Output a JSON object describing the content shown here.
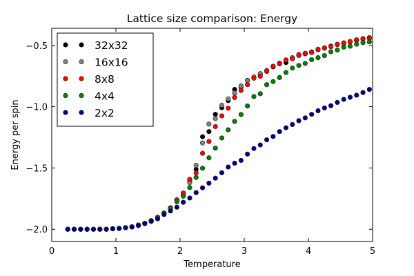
{
  "chart_data": {
    "type": "scatter",
    "title": "Lattice size comparison: Energy",
    "xlabel": "Temperature",
    "ylabel": "Energy per spin",
    "xlim": [
      0,
      5
    ],
    "ylim": [
      -2.1,
      -0.36
    ],
    "xticks": [
      0,
      1,
      2,
      3,
      4,
      5
    ],
    "xtick_labels": [
      "0",
      "1",
      "2",
      "3",
      "4",
      "5"
    ],
    "yticks": [
      -2.0,
      -1.5,
      -1.0,
      -0.5
    ],
    "ytick_labels": [
      "−2.0",
      "−1.5",
      "−1.0",
      "−0.5"
    ],
    "grid": false,
    "legend_position": "top-left",
    "x": [
      0.25,
      0.35,
      0.45,
      0.55,
      0.65,
      0.75,
      0.85,
      0.95,
      1.05,
      1.15,
      1.25,
      1.35,
      1.45,
      1.55,
      1.65,
      1.75,
      1.85,
      1.95,
      2.05,
      2.15,
      2.25,
      2.35,
      2.45,
      2.55,
      2.65,
      2.75,
      2.85,
      2.95,
      3.05,
      3.15,
      3.25,
      3.35,
      3.45,
      3.55,
      3.65,
      3.75,
      3.85,
      3.95,
      4.05,
      4.15,
      4.25,
      4.35,
      4.45,
      4.55,
      4.65,
      4.75,
      4.85,
      4.95
    ],
    "series": [
      {
        "name": "32x32",
        "color": "#000000",
        "values": [
          -2.0,
          -2.0,
          -2.0,
          -2.0,
          -2.0,
          -2.0,
          -2.0,
          -1.996,
          -1.993,
          -1.987,
          -1.98,
          -1.966,
          -1.951,
          -1.93,
          -1.903,
          -1.868,
          -1.826,
          -1.76,
          -1.705,
          -1.6,
          -1.512,
          -1.245,
          -1.203,
          -1.062,
          -1.008,
          -0.95,
          -0.859,
          -0.84,
          -0.785,
          -0.76,
          -0.735,
          -0.712,
          -0.675,
          -0.65,
          -0.64,
          -0.605,
          -0.58,
          -0.568,
          -0.556,
          -0.535,
          -0.522,
          -0.51,
          -0.492,
          -0.482,
          -0.47,
          -0.458,
          -0.446,
          -0.438
        ]
      },
      {
        "name": "16x16",
        "color": "#808080",
        "values": [
          -2.0,
          -2.0,
          -2.0,
          -2.0,
          -2.0,
          -2.0,
          -2.0,
          -1.996,
          -1.993,
          -1.987,
          -1.98,
          -1.966,
          -1.951,
          -1.93,
          -1.903,
          -1.868,
          -1.826,
          -1.762,
          -1.712,
          -1.62,
          -1.478,
          -1.296,
          -1.142,
          -1.097,
          -0.988,
          -0.936,
          -0.888,
          -0.83,
          -0.787,
          -0.757,
          -0.73,
          -0.705,
          -0.67,
          -0.645,
          -0.62,
          -0.6,
          -0.582,
          -0.566,
          -0.553,
          -0.534,
          -0.52,
          -0.505,
          -0.493,
          -0.48,
          -0.47,
          -0.46,
          -0.444,
          -0.436
        ]
      },
      {
        "name": "8x8",
        "color": "#ff0000",
        "values": [
          -2.0,
          -2.0,
          -2.0,
          -2.0,
          -2.0,
          -2.0,
          -2.0,
          -1.996,
          -1.993,
          -1.987,
          -1.98,
          -1.966,
          -1.951,
          -1.93,
          -1.903,
          -1.868,
          -1.825,
          -1.76,
          -1.705,
          -1.592,
          -1.54,
          -1.38,
          -1.284,
          -1.162,
          -1.075,
          -1.012,
          -0.925,
          -0.867,
          -0.82,
          -0.767,
          -0.751,
          -0.709,
          -0.67,
          -0.647,
          -0.618,
          -0.609,
          -0.574,
          -0.564,
          -0.558,
          -0.531,
          -0.522,
          -0.508,
          -0.49,
          -0.479,
          -0.467,
          -0.454,
          -0.448,
          -0.442
        ]
      },
      {
        "name": "4x4",
        "color": "#008000",
        "values": [
          -2.0,
          -2.0,
          -2.0,
          -2.0,
          -2.0,
          -2.0,
          -2.0,
          -1.996,
          -1.993,
          -1.987,
          -1.981,
          -1.966,
          -1.952,
          -1.932,
          -1.906,
          -1.872,
          -1.832,
          -1.775,
          -1.73,
          -1.66,
          -1.577,
          -1.502,
          -1.417,
          -1.338,
          -1.255,
          -1.188,
          -1.12,
          -1.064,
          -0.994,
          -0.917,
          -0.894,
          -0.82,
          -0.795,
          -0.762,
          -0.721,
          -0.684,
          -0.663,
          -0.646,
          -0.616,
          -0.6,
          -0.583,
          -0.552,
          -0.537,
          -0.514,
          -0.506,
          -0.49,
          -0.477,
          -0.471
        ]
      },
      {
        "name": "2x2",
        "color": "#000080",
        "values": [
          -2.0,
          -2.0,
          -2.0,
          -2.0,
          -2.0,
          -2.0,
          -2.0,
          -1.996,
          -1.994,
          -1.988,
          -1.982,
          -1.97,
          -1.955,
          -1.936,
          -1.915,
          -1.88,
          -1.851,
          -1.82,
          -1.78,
          -1.745,
          -1.701,
          -1.662,
          -1.624,
          -1.583,
          -1.539,
          -1.492,
          -1.461,
          -1.438,
          -1.387,
          -1.341,
          -1.312,
          -1.27,
          -1.243,
          -1.203,
          -1.172,
          -1.145,
          -1.114,
          -1.091,
          -1.062,
          -1.033,
          -1.01,
          -0.992,
          -0.965,
          -0.94,
          -0.923,
          -0.906,
          -0.884,
          -0.859
        ]
      }
    ]
  }
}
